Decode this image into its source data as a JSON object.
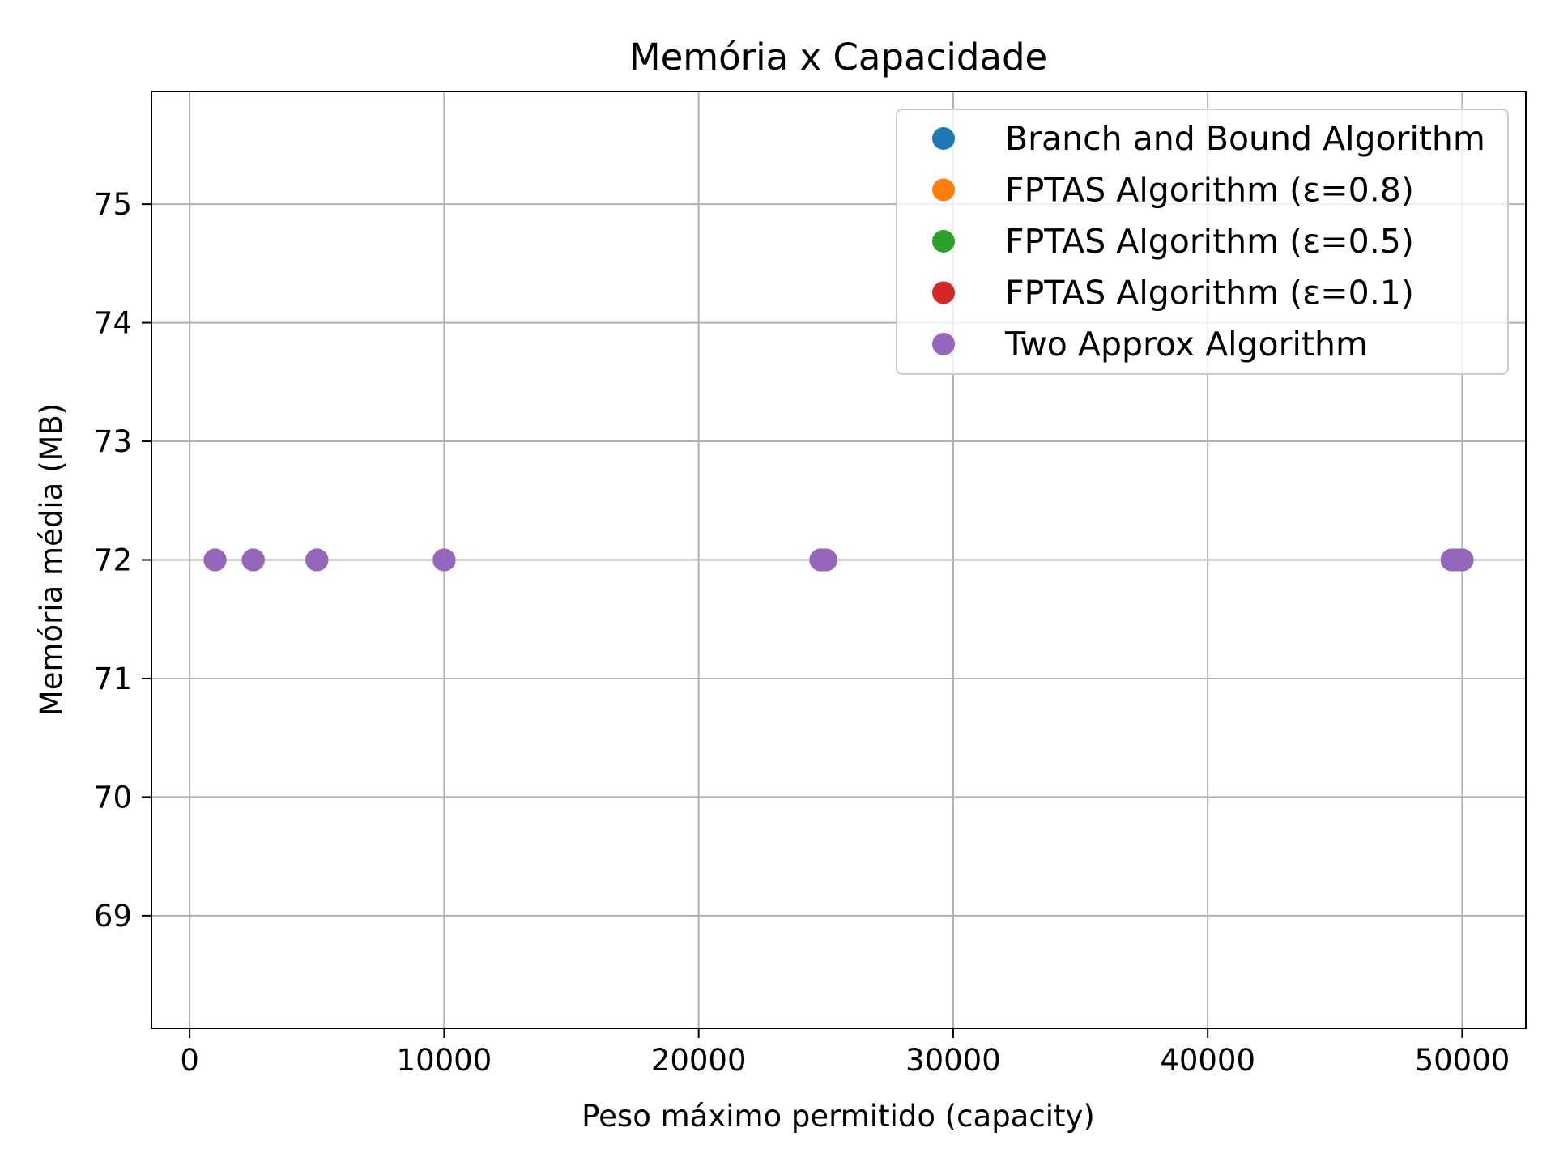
{
  "chart_data": {
    "type": "scatter",
    "title": "Memória x Capacidade",
    "xlabel": "Peso máximo permitido (capacity)",
    "ylabel": "Memória média (MB)",
    "xlim": [
      -1500,
      52500
    ],
    "ylim": [
      68.05,
      75.95
    ],
    "xticks": [
      0,
      10000,
      20000,
      30000,
      40000,
      50000
    ],
    "xtick_labels": [
      "0",
      "10000",
      "20000",
      "30000",
      "40000",
      "50000"
    ],
    "yticks": [
      69,
      70,
      71,
      72,
      73,
      74,
      75
    ],
    "ytick_labels": [
      "69",
      "70",
      "71",
      "72",
      "73",
      "74",
      "75"
    ],
    "grid": true,
    "legend_position": "top-right",
    "series": [
      {
        "name": "Branch and Bound Algorithm",
        "color": "#1f77b4",
        "x": [
          1000,
          2500,
          5000,
          10000,
          24800,
          25000,
          49600,
          49800,
          50000
        ],
        "y": [
          72,
          72,
          72,
          72,
          72,
          72,
          72,
          72,
          72
        ]
      },
      {
        "name": "FPTAS Algorithm (ε=0.8)",
        "color": "#ff7f0e",
        "x": [
          1000,
          2500,
          5000,
          10000,
          24800,
          25000,
          49600,
          49800,
          50000
        ],
        "y": [
          72,
          72,
          72,
          72,
          72,
          72,
          72,
          72,
          72
        ]
      },
      {
        "name": "FPTAS Algorithm (ε=0.5)",
        "color": "#2ca02c",
        "x": [
          1000,
          2500,
          5000,
          10000,
          24800,
          25000,
          49600,
          49800,
          50000
        ],
        "y": [
          72,
          72,
          72,
          72,
          72,
          72,
          72,
          72,
          72
        ]
      },
      {
        "name": "FPTAS Algorithm (ε=0.1)",
        "color": "#d62728",
        "x": [
          1000,
          2500,
          5000,
          10000,
          24800,
          25000,
          49600,
          49800,
          50000
        ],
        "y": [
          72,
          72,
          72,
          72,
          72,
          72,
          72,
          72,
          72
        ]
      },
      {
        "name": "Two Approx Algorithm",
        "color": "#9467bd",
        "x": [
          1000,
          2500,
          5000,
          10000,
          24800,
          25000,
          49600,
          49800,
          50000
        ],
        "y": [
          72,
          72,
          72,
          72,
          72,
          72,
          72,
          72,
          72
        ]
      }
    ]
  }
}
